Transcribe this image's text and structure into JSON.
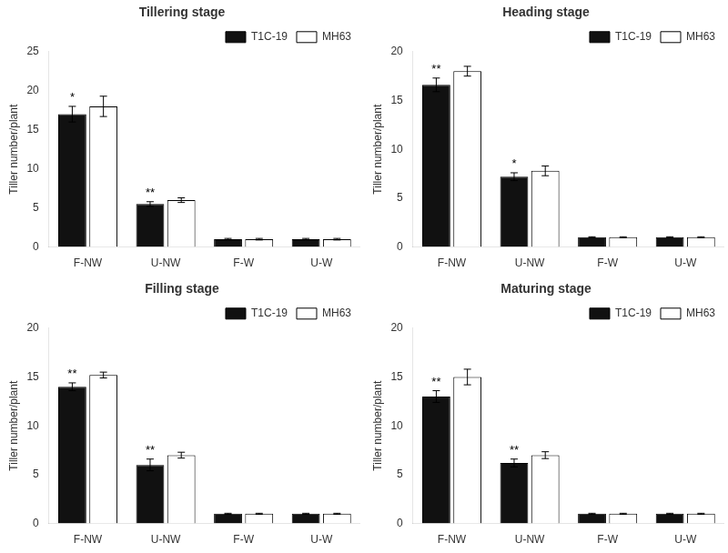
{
  "chart_data": [
    {
      "type": "bar",
      "title": "Tillering stage",
      "ylabel": "Tiller number/plant",
      "categories": [
        "F-NW",
        "U-NW",
        "F-W",
        "U-W"
      ],
      "series": [
        {
          "name": "T1C-19",
          "color": "#111111",
          "values": [
            17.0,
            5.5,
            1.0,
            1.0
          ],
          "errors": [
            1.0,
            0.3,
            0.1,
            0.1
          ],
          "significance": [
            "*",
            "**",
            null,
            null
          ]
        },
        {
          "name": "MH63",
          "color": "#ffffff",
          "values": [
            18.0,
            6.0,
            1.0,
            1.0
          ],
          "errors": [
            1.3,
            0.3,
            0.1,
            0.1
          ]
        }
      ],
      "ylim": [
        0,
        25
      ],
      "yticks": [
        0,
        5,
        10,
        15,
        20,
        25
      ],
      "grid": false,
      "legend": "upper right"
    },
    {
      "type": "bar",
      "title": "Heading stage",
      "ylabel": "Tiller number/plant",
      "categories": [
        "F-NW",
        "U-NW",
        "F-W",
        "U-W"
      ],
      "series": [
        {
          "name": "T1C-19",
          "color": "#111111",
          "values": [
            16.6,
            7.2,
            1.0,
            1.0
          ],
          "errors": [
            0.7,
            0.4,
            0.05,
            0.05
          ],
          "significance": [
            "**",
            "*",
            null,
            null
          ]
        },
        {
          "name": "MH63",
          "color": "#ffffff",
          "values": [
            18.0,
            7.8,
            1.0,
            1.0
          ],
          "errors": [
            0.5,
            0.5,
            0.05,
            0.05
          ]
        }
      ],
      "ylim": [
        0,
        20
      ],
      "yticks": [
        0,
        5,
        10,
        15,
        20
      ],
      "grid": false,
      "legend": "upper right"
    },
    {
      "type": "bar",
      "title": "Filling stage",
      "ylabel": "Tiller number/plant",
      "categories": [
        "F-NW",
        "U-NW",
        "F-W",
        "U-W"
      ],
      "series": [
        {
          "name": "T1C-19",
          "color": "#111111",
          "values": [
            14.0,
            6.0,
            1.0,
            1.0
          ],
          "errors": [
            0.4,
            0.6,
            0.05,
            0.05
          ],
          "significance": [
            "**",
            "**",
            null,
            null
          ]
        },
        {
          "name": "MH63",
          "color": "#ffffff",
          "values": [
            15.2,
            7.0,
            1.0,
            1.0
          ],
          "errors": [
            0.3,
            0.3,
            0.05,
            0.05
          ]
        }
      ],
      "ylim": [
        0,
        20
      ],
      "yticks": [
        0,
        5,
        10,
        15,
        20
      ],
      "grid": false,
      "legend": "upper right"
    },
    {
      "type": "bar",
      "title": "Maturing stage",
      "ylabel": "Tiller number/plant",
      "categories": [
        "F-NW",
        "U-NW",
        "F-W",
        "U-W"
      ],
      "series": [
        {
          "name": "T1C-19",
          "color": "#111111",
          "values": [
            13.0,
            6.2,
            1.0,
            1.0
          ],
          "errors": [
            0.6,
            0.4,
            0.05,
            0.05
          ],
          "significance": [
            "**",
            "**",
            null,
            null
          ]
        },
        {
          "name": "MH63",
          "color": "#ffffff",
          "values": [
            15.0,
            7.0,
            1.0,
            1.0
          ],
          "errors": [
            0.8,
            0.35,
            0.05,
            0.05
          ]
        }
      ],
      "ylim": [
        0,
        20
      ],
      "yticks": [
        0,
        5,
        10,
        15,
        20
      ],
      "grid": false,
      "legend": "upper right"
    }
  ]
}
